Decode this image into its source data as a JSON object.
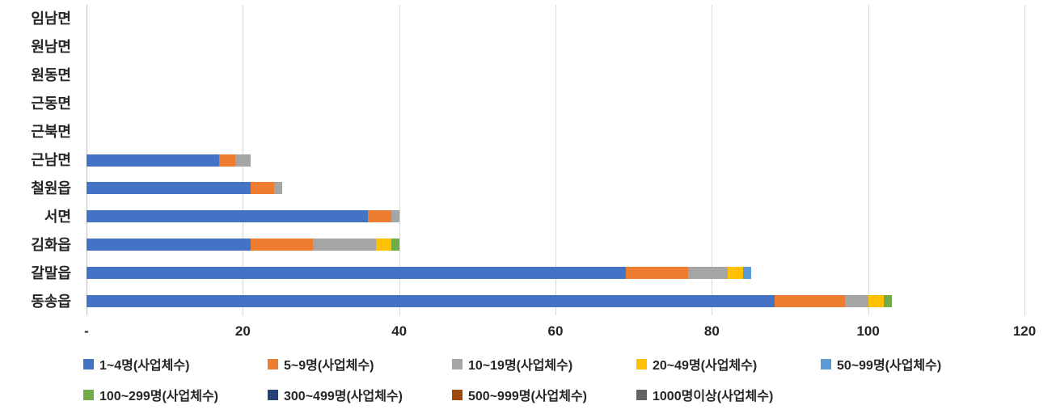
{
  "chart_data": {
    "type": "bar",
    "orientation": "horizontal",
    "stacked": true,
    "title": "",
    "xlabel": "",
    "ylabel": "",
    "xlim": [
      0,
      120
    ],
    "grid": true,
    "legend_position": "bottom",
    "x_ticks": [
      "-",
      "20",
      "40",
      "60",
      "80",
      "100",
      "120"
    ],
    "x_tick_values": [
      0,
      20,
      40,
      60,
      80,
      100,
      120
    ],
    "categories": [
      "임남면",
      "원남면",
      "원동면",
      "근동면",
      "근북면",
      "근남면",
      "철원읍",
      "서면",
      "김화읍",
      "갈말읍",
      "동송읍"
    ],
    "series": [
      {
        "name": "1~4명(사업체수)",
        "color": "#4472C4",
        "values": [
          0,
          0,
          0,
          0,
          0,
          17,
          21,
          36,
          21,
          69,
          88
        ]
      },
      {
        "name": "5~9명(사업체수)",
        "color": "#ED7D31",
        "values": [
          0,
          0,
          0,
          0,
          0,
          2,
          3,
          3,
          8,
          8,
          9
        ]
      },
      {
        "name": "10~19명(사업체수)",
        "color": "#A5A5A5",
        "values": [
          0,
          0,
          0,
          0,
          0,
          2,
          1,
          1,
          8,
          5,
          3
        ]
      },
      {
        "name": "20~49명(사업체수)",
        "color": "#FFC000",
        "values": [
          0,
          0,
          0,
          0,
          0,
          0,
          0,
          0,
          2,
          2,
          2
        ]
      },
      {
        "name": "50~99명(사업체수)",
        "color": "#5B9BD5",
        "values": [
          0,
          0,
          0,
          0,
          0,
          0,
          0,
          0,
          0,
          1,
          0
        ]
      },
      {
        "name": "100~299명(사업체수)",
        "color": "#70AD47",
        "values": [
          0,
          0,
          0,
          0,
          0,
          0,
          0,
          0,
          1,
          0,
          1
        ]
      },
      {
        "name": "300~499명(사업체수)",
        "color": "#264478",
        "values": [
          0,
          0,
          0,
          0,
          0,
          0,
          0,
          0,
          0,
          0,
          0
        ]
      },
      {
        "name": "500~999명(사업체수)",
        "color": "#9E480E",
        "values": [
          0,
          0,
          0,
          0,
          0,
          0,
          0,
          0,
          0,
          0,
          0
        ]
      },
      {
        "name": "1000명이상(사업체수)",
        "color": "#636363",
        "values": [
          0,
          0,
          0,
          0,
          0,
          0,
          0,
          0,
          0,
          0,
          0
        ]
      }
    ],
    "legend_rows": [
      [
        0,
        1,
        2,
        3,
        4
      ],
      [
        5,
        6,
        7,
        8
      ]
    ]
  }
}
